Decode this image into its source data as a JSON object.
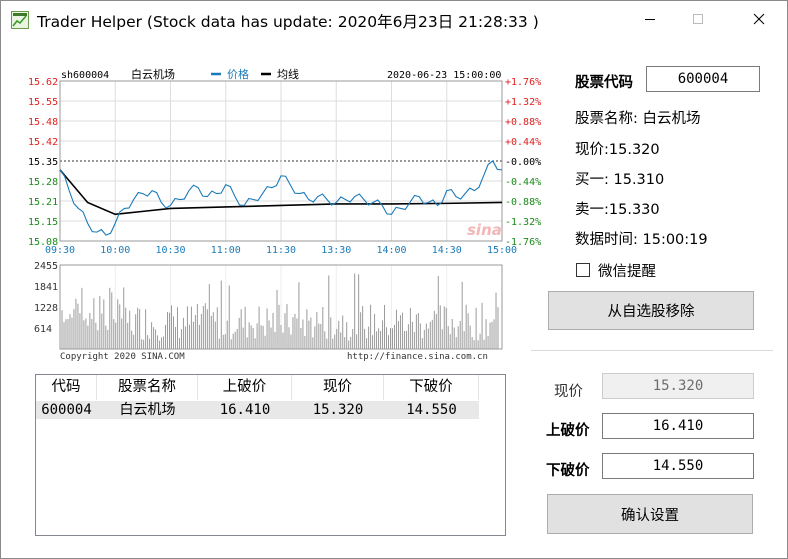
{
  "window": {
    "title": "Trader Helper (Stock data has update: 2020年6月23日 21:28:33 )"
  },
  "chart": {
    "symbol": "sh600004",
    "name": "白云机场",
    "legend_price": "价格",
    "legend_avg": "均线",
    "datetime": "2020-06-23 15:00:00",
    "copyright": "Copyright 2020 SINA.COM",
    "url": "http://finance.sina.com.cn",
    "watermark": "sina",
    "colors": {
      "price": "#1a7ab8",
      "avg": "#000000",
      "up": "#e02020",
      "down": "#1a8a1a",
      "volume": "#9a9a9a"
    }
  },
  "chart_data": {
    "type": "line",
    "title": "",
    "xlabel": "",
    "ylabel": "",
    "x_ticks": [
      "09:30",
      "10:00",
      "10:30",
      "11:00",
      "11:30",
      "13:30",
      "14:00",
      "14:30",
      "15:00"
    ],
    "y_ticks_left": [
      "15.62",
      "15.55",
      "15.48",
      "15.42",
      "15.35",
      "15.28",
      "15.21",
      "15.15",
      "15.08"
    ],
    "y_ticks_right": [
      "+1.76%",
      "+1.32%",
      "+0.88%",
      "+0.44%",
      "-0.00%",
      "-0.44%",
      "-0.88%",
      "-1.32%",
      "-1.76%"
    ],
    "ylim": [
      15.08,
      15.62
    ],
    "prev_close": 15.35,
    "series": [
      {
        "name": "价格",
        "x": [
          "09:30",
          "09:35",
          "09:40",
          "09:45",
          "09:50",
          "09:55",
          "10:00",
          "10:05",
          "10:10",
          "10:15",
          "10:20",
          "10:25",
          "10:30",
          "10:35",
          "10:40",
          "10:45",
          "10:50",
          "10:55",
          "11:00",
          "11:05",
          "11:10",
          "11:15",
          "11:20",
          "11:25",
          "11:30",
          "13:05",
          "13:10",
          "13:15",
          "13:20",
          "13:25",
          "13:30",
          "13:35",
          "13:40",
          "13:45",
          "13:50",
          "13:55",
          "14:00",
          "14:05",
          "14:10",
          "14:15",
          "14:20",
          "14:25",
          "14:30",
          "14:35",
          "14:40",
          "14:45",
          "14:50",
          "14:55",
          "15:00"
        ],
        "values": [
          15.32,
          15.25,
          15.19,
          15.14,
          15.11,
          15.1,
          15.14,
          15.19,
          15.22,
          15.24,
          15.25,
          15.21,
          15.2,
          15.22,
          15.25,
          15.26,
          15.23,
          15.24,
          15.27,
          15.23,
          15.2,
          15.22,
          15.24,
          15.26,
          15.3,
          15.27,
          15.24,
          15.22,
          15.23,
          15.22,
          15.21,
          15.22,
          15.23,
          15.22,
          15.21,
          15.2,
          15.17,
          15.19,
          15.21,
          15.23,
          15.21,
          15.2,
          15.25,
          15.23,
          15.24,
          15.25,
          15.3,
          15.35,
          15.32
        ]
      },
      {
        "name": "均线",
        "x": [
          "09:30",
          "09:45",
          "10:00",
          "10:15",
          "10:30",
          "11:00",
          "11:30",
          "13:30",
          "14:00",
          "14:30",
          "15:00"
        ],
        "values": [
          15.32,
          15.21,
          15.17,
          15.18,
          15.19,
          15.195,
          15.2,
          15.205,
          15.205,
          15.207,
          15.21
        ]
      }
    ],
    "volume": {
      "y_ticks": [
        "2455",
        "1841",
        "1228",
        "614"
      ],
      "ylim": [
        0,
        2455
      ]
    }
  },
  "right_panel": {
    "code_label": "股票代码",
    "code_value": "600004",
    "name_line": "股票名称: 白云机场",
    "price_line": "现价:15.320",
    "bid1_line": "买一: 15.310",
    "ask1_line": "卖一:15.330",
    "time_line": "数据时间: 15:00:19",
    "wechat_label": "微信提醒",
    "wechat_checked": false,
    "remove_button": "从自选股移除",
    "current_label": "现价",
    "current_value": "15.320",
    "upper_label": "上破价",
    "upper_value": "16.410",
    "lower_label": "下破价",
    "lower_value": "14.550",
    "confirm_button": "确认设置"
  },
  "table": {
    "headers": [
      "代码",
      "股票名称",
      "上破价",
      "现价",
      "下破价"
    ],
    "rows": [
      [
        "600004",
        "白云机场",
        "16.410",
        "15.320",
        "14.550"
      ]
    ]
  }
}
